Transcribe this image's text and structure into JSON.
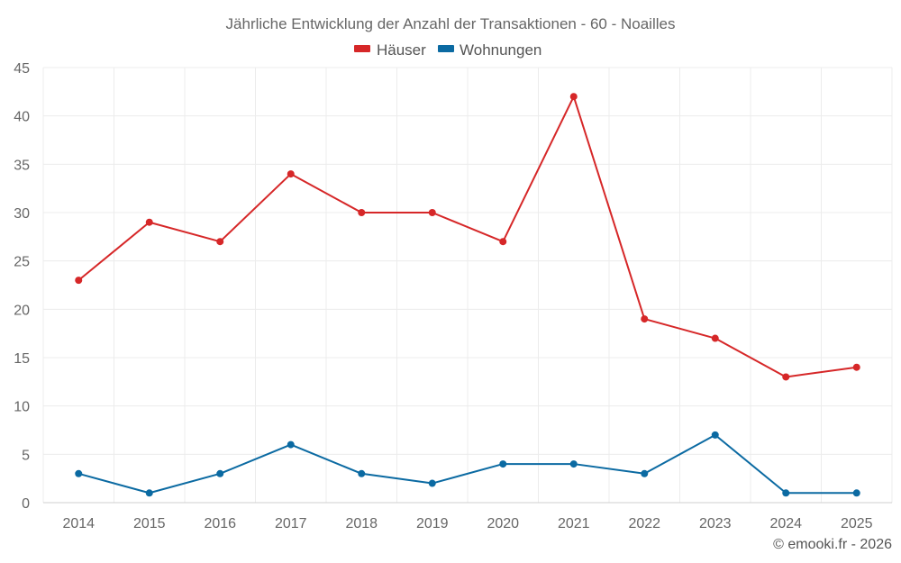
{
  "chart_data": {
    "type": "line",
    "title": "Jährliche Entwicklung der Anzahl der Transaktionen - 60 - Noailles",
    "categories": [
      "2014",
      "2015",
      "2016",
      "2017",
      "2018",
      "2019",
      "2020",
      "2021",
      "2022",
      "2023",
      "2024",
      "2025"
    ],
    "series": [
      {
        "name": "Häuser",
        "color": "#d62728",
        "values": [
          23,
          29,
          27,
          34,
          30,
          30,
          27,
          42,
          19,
          17,
          13,
          14
        ]
      },
      {
        "name": "Wohnungen",
        "color": "#0b6aa2",
        "values": [
          3,
          1,
          3,
          6,
          3,
          2,
          4,
          4,
          3,
          7,
          1,
          1
        ]
      }
    ],
    "ylim": [
      0,
      45
    ],
    "yticks": [
      0,
      5,
      10,
      15,
      20,
      25,
      30,
      35,
      40,
      45
    ],
    "grid": true,
    "legend_position": "top-center",
    "xlabel": "",
    "ylabel": ""
  },
  "credit": "© emooki.fr - 2026"
}
